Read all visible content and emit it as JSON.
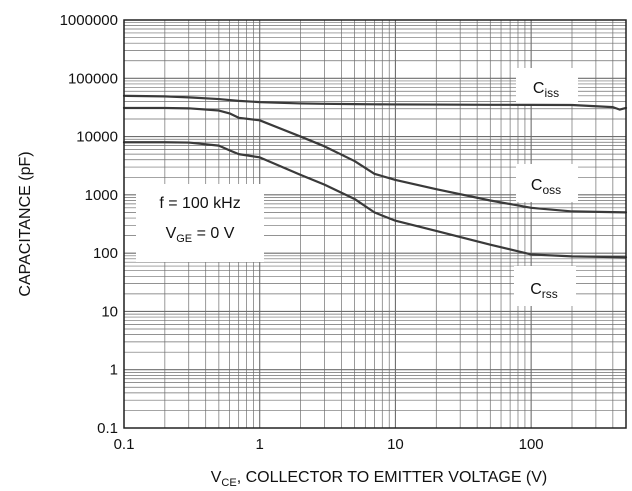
{
  "chart_data": {
    "type": "line",
    "title": "",
    "xlabel": {
      "main": "V",
      "sub": "CE",
      "rest": ", COLLECTOR TO EMITTER VOLTAGE (V)"
    },
    "ylabel": "CAPACITANCE (pF)",
    "x_scale": "log",
    "y_scale": "log",
    "xlim": [
      0.1,
      500
    ],
    "ylim": [
      0.1,
      1000000
    ],
    "x_ticks": [
      0.1,
      1,
      10,
      100
    ],
    "x_tick_labels": [
      "0.1",
      "1",
      "10",
      "100"
    ],
    "y_ticks": [
      0.1,
      1,
      10,
      100,
      1000,
      10000,
      100000,
      1000000
    ],
    "y_tick_labels": [
      "0.1",
      "1",
      "10",
      "100",
      "1000",
      "10000",
      "100000",
      "1000000"
    ],
    "grid": true,
    "line_color": "#3a3a3a",
    "grid_color": "#6e6e6e",
    "conditions": {
      "line1": "f = 100 kHz",
      "line2_main": "V",
      "line2_sub": "GE",
      "line2_rest": " = 0 V"
    },
    "series": [
      {
        "name": {
          "main": "C",
          "sub": "iss"
        },
        "x": [
          0.1,
          0.2,
          0.3,
          0.5,
          0.7,
          1,
          2,
          3,
          5,
          7,
          10,
          20,
          50,
          100,
          200,
          400,
          450,
          500
        ],
        "y": [
          50000,
          49000,
          47000,
          44000,
          41000,
          39000,
          37000,
          36500,
          36000,
          35800,
          35600,
          35400,
          35100,
          35000,
          34800,
          32000,
          29000,
          31000
        ]
      },
      {
        "name": {
          "main": "C",
          "sub": "oss"
        },
        "x": [
          0.1,
          0.2,
          0.3,
          0.5,
          0.6,
          0.7,
          1,
          2,
          3,
          5,
          7,
          10,
          20,
          50,
          100,
          200,
          500
        ],
        "y": [
          31000,
          31000,
          30500,
          28000,
          25000,
          21000,
          19000,
          10000,
          6800,
          3800,
          2300,
          1800,
          1250,
          800,
          600,
          520,
          500
        ]
      },
      {
        "name": {
          "main": "C",
          "sub": "rss"
        },
        "x": [
          0.1,
          0.2,
          0.3,
          0.5,
          0.6,
          0.7,
          1,
          2,
          3,
          5,
          7,
          10,
          20,
          50,
          100,
          200,
          500
        ],
        "y": [
          8000,
          8000,
          7900,
          7000,
          5800,
          5000,
          4400,
          2200,
          1500,
          850,
          500,
          360,
          240,
          140,
          95,
          88,
          85
        ]
      }
    ]
  }
}
